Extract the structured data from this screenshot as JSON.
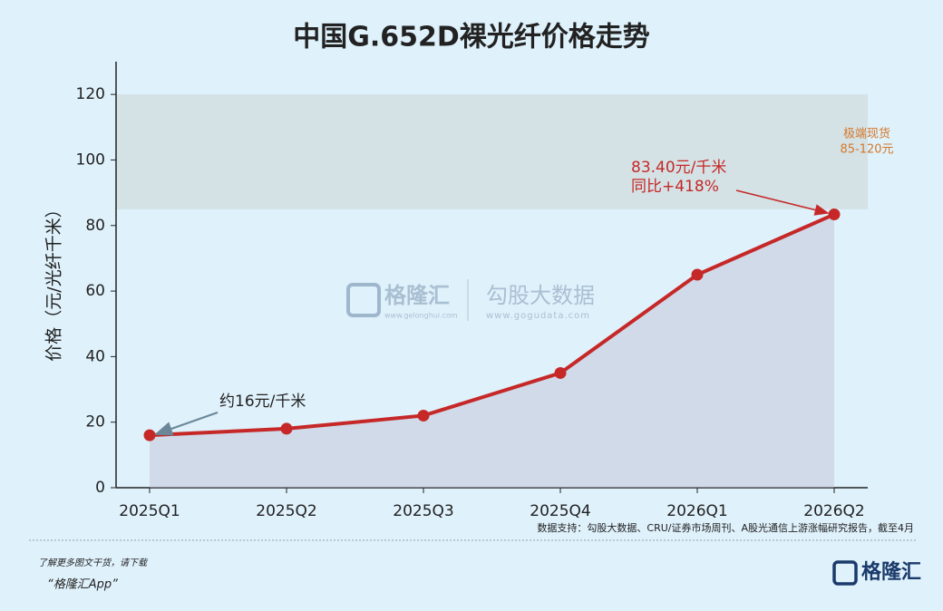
{
  "chart_data": {
    "type": "line",
    "title": "中国G.652D裸光纤价格走势",
    "y_label": "价格（元/光纤千米）",
    "categories": [
      "2025Q1",
      "2025Q2",
      "2025Q3",
      "2025Q4",
      "2026Q1",
      "2026Q2"
    ],
    "series": [
      {
        "name": "价格",
        "color": "#c62828",
        "values": [
          16,
          18,
          22,
          35,
          65,
          83.4
        ],
        "value_labels": [
          "约16元/千米",
          null,
          null,
          null,
          null,
          "83.40元/千米"
        ]
      }
    ],
    "annotation": "同比+418%",
    "band": {
      "range": [
        85,
        120
      ],
      "lines": [
        "极端现货",
        "85-120元"
      ]
    },
    "ylim": [
      0,
      130
    ],
    "yticks": [
      0,
      20,
      40,
      60,
      80,
      100,
      120
    ],
    "source": "数据支持：勾股大数据、CRU/证券市场周刊、A股光通信上游涨幅研究报告，截至4月"
  },
  "watermark": {
    "brand": "格隆汇",
    "brand_url": "www.gelonghui.com",
    "partner": "勾股大数据",
    "partner_url": "www.gogudata.com"
  },
  "footer": {
    "line1": "了解更多图文干货，请下载",
    "line2": "“格隆汇App”",
    "logo": "格隆汇"
  }
}
